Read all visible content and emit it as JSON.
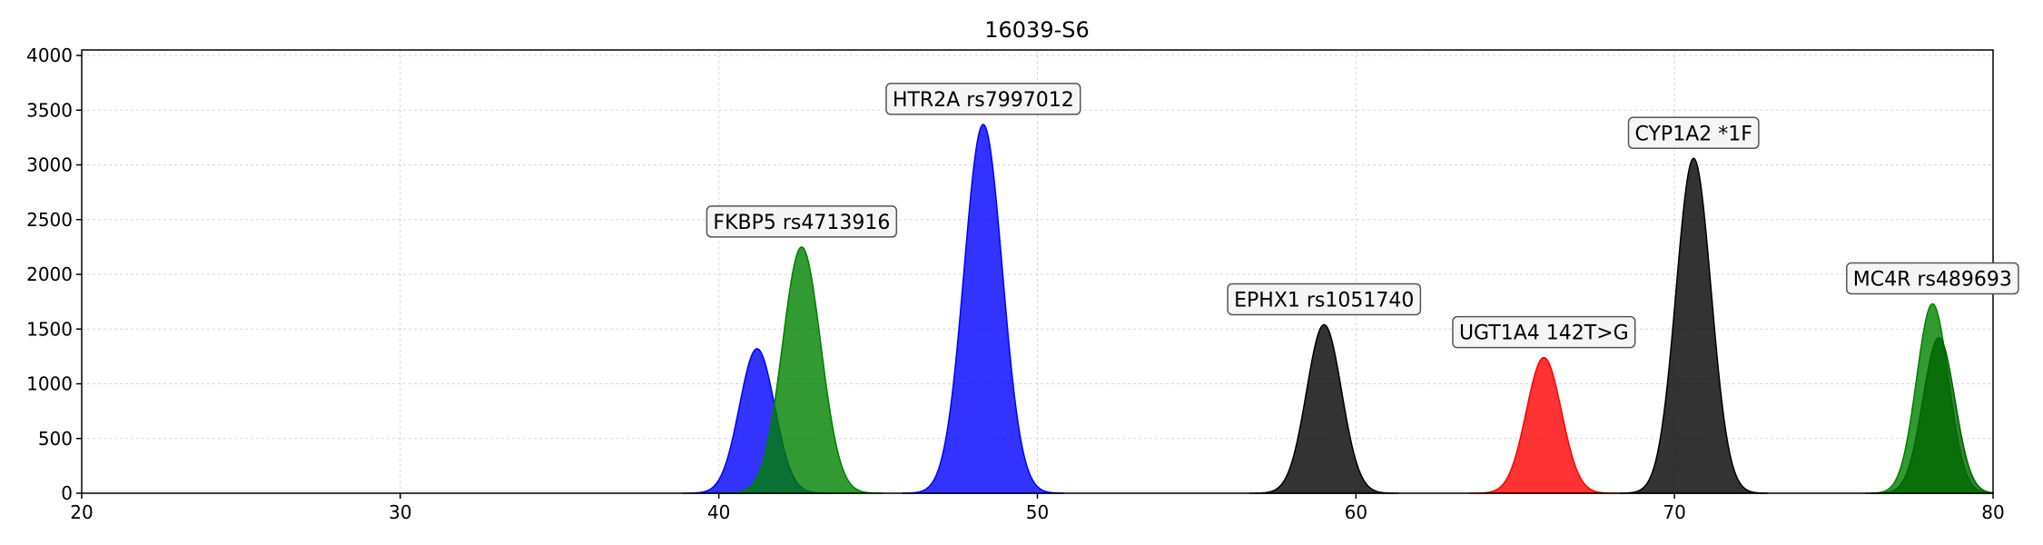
{
  "chart_data": {
    "type": "area",
    "title": "16039-S6",
    "xlabel": "",
    "ylabel": "",
    "xlim": [
      20,
      80
    ],
    "ylim": [
      0,
      4050
    ],
    "x_ticks": [
      20,
      30,
      40,
      50,
      60,
      70,
      80
    ],
    "y_ticks": [
      0,
      500,
      1000,
      1500,
      2000,
      2500,
      3000,
      3500,
      4000
    ],
    "grid": true,
    "peaks": [
      {
        "center": 41.2,
        "height": 1320,
        "sigma": 0.55,
        "color": "#0000ff"
      },
      {
        "center": 42.6,
        "height": 2250,
        "sigma": 0.6,
        "color": "#008000",
        "label": "FKBP5 rs4713916"
      },
      {
        "center": 48.3,
        "height": 3370,
        "sigma": 0.6,
        "color": "#0000ff",
        "label": "HTR2A rs7997012"
      },
      {
        "center": 59.0,
        "height": 1540,
        "sigma": 0.55,
        "color": "#000000",
        "label": "EPHX1 rs1051740"
      },
      {
        "center": 65.9,
        "height": 1240,
        "sigma": 0.55,
        "color": "#ff0000",
        "label": "UGT1A4 142T>G"
      },
      {
        "center": 70.6,
        "height": 3060,
        "sigma": 0.55,
        "color": "#000000",
        "label": "CYP1A2 *1F"
      },
      {
        "center": 78.1,
        "height": 1730,
        "sigma": 0.5,
        "color": "#008000",
        "label": "MC4R rs489693"
      },
      {
        "center": 78.3,
        "height": 1420,
        "sigma": 0.5,
        "color": "#006400"
      }
    ]
  }
}
